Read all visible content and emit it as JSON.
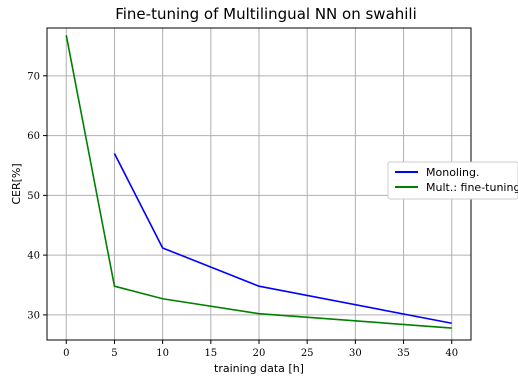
{
  "chart_data": {
    "type": "line",
    "title": "Fine-tuning of Multilingual NN on swahili",
    "xlabel": "training data [h]",
    "ylabel": "CER[%]",
    "xlim": [
      -2,
      42
    ],
    "ylim": [
      25.8,
      78
    ],
    "xticks": [
      0,
      5,
      10,
      15,
      20,
      25,
      30,
      35,
      40
    ],
    "yticks": [
      30,
      40,
      50,
      60,
      70
    ],
    "grid": true,
    "legend_position": "right",
    "series": [
      {
        "name": "Monoling.",
        "color": "#0000ff",
        "x": [
          5,
          10,
          20,
          40
        ],
        "y": [
          57.0,
          41.2,
          34.8,
          28.6
        ]
      },
      {
        "name": "Mult.: fine-tuning",
        "color": "#008000",
        "x": [
          0,
          5,
          10,
          20,
          40
        ],
        "y": [
          76.8,
          34.8,
          32.7,
          30.2,
          27.8
        ]
      }
    ]
  }
}
